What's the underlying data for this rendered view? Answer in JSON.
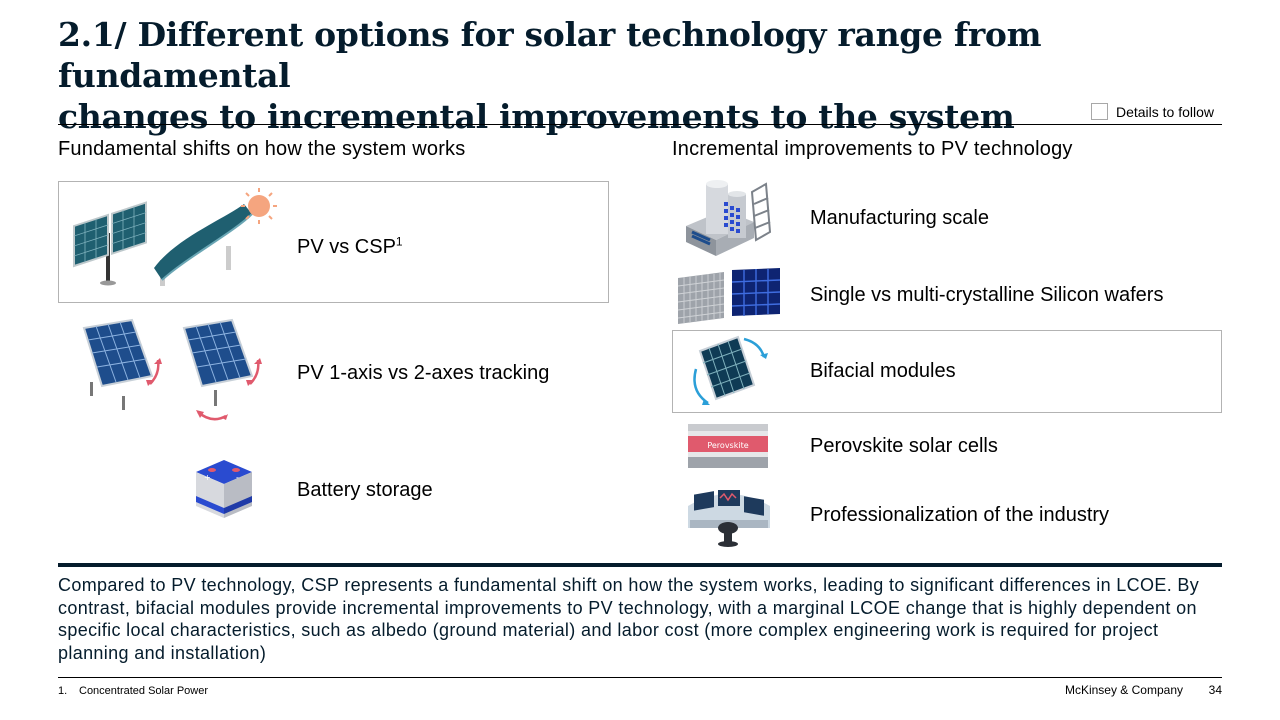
{
  "title": {
    "line1": "2.1/ Different options for solar technology range from fundamental",
    "line2": "changes to incremental improvements to the system"
  },
  "legend": {
    "label": "Details to follow"
  },
  "left_column": {
    "heading": "Fundamental shifts on how the system works",
    "items": [
      {
        "label": "PV vs CSP",
        "superscript": "1",
        "icon": "pv-and-csp-icon",
        "highlighted": true
      },
      {
        "label": "PV 1-axis vs 2-axes tracking",
        "icon": "solar-tracking-icon",
        "highlighted": false
      },
      {
        "label": "Battery storage",
        "icon": "battery-icon",
        "highlighted": false
      }
    ]
  },
  "right_column": {
    "heading": "Incremental improvements to PV technology",
    "items": [
      {
        "label": "Manufacturing scale",
        "icon": "factory-icon",
        "highlighted": false
      },
      {
        "label": "Single vs multi-crystalline Silicon wafers",
        "icon": "silicon-wafer-icon",
        "highlighted": false
      },
      {
        "label": "Bifacial modules",
        "icon": "bifacial-module-icon",
        "highlighted": true
      },
      {
        "label": "Perovskite solar cells",
        "icon": "perovskite-layer-icon",
        "highlighted": false,
        "icon_text": "Perovskite"
      },
      {
        "label": "Professionalization of the industry",
        "icon": "control-room-icon",
        "highlighted": false
      }
    ]
  },
  "summary": "Compared to PV technology, CSP represents a fundamental shift on how the system works, leading to significant differences in LCOE. By contrast, bifacial modules provide incremental improvements to PV technology, with a marginal LCOE change that is highly dependent on specific local characteristics, such as albedo (ground material) and labor cost (more complex engineering work is required for project planning and installation)",
  "footnote": {
    "number": "1.",
    "text": "Concentrated Solar Power"
  },
  "footer": {
    "brand": "McKinsey & Company",
    "page": "34"
  },
  "colors": {
    "navy": "#051c2c",
    "panel_blue": "#1e4d8c",
    "csp_teal": "#1f5f70",
    "accent_pink": "#e05a6d",
    "sun_orange": "#f5a57f"
  }
}
